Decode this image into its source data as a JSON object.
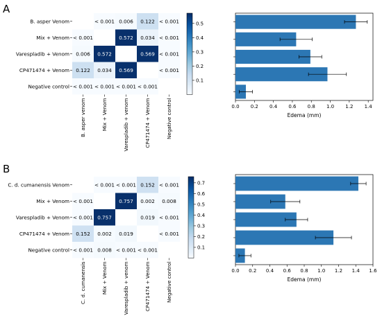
{
  "colors": {
    "bar": "#2c77b4",
    "heat_low": "#f7fbff",
    "heat_high": "#08306b"
  },
  "chart_data": [
    {
      "type": "heatmap",
      "panel": "A",
      "rows": [
        "B. asper Venom",
        "Mix + Venom",
        "Varespladib + Venom",
        "CP471474 + Venom",
        "Negative control"
      ],
      "cols": [
        "B. asper venom",
        "Mix + Venom",
        "Varespladib + venom",
        "CP471474 + Venom",
        "Negative control"
      ],
      "cells": [
        [
          "",
          "< 0.001",
          "0.006",
          "0.122",
          "< 0.001"
        ],
        [
          "< 0.001",
          "",
          "0.572",
          "0.034",
          "< 0.001"
        ],
        [
          "0.006",
          "0.572",
          "",
          "0.569",
          "< 0.001"
        ],
        [
          "0.122",
          "0.034",
          "0.569",
          "",
          "< 0.001"
        ],
        [
          "< 0.001",
          "< 0.001",
          "< 0.001",
          "< 0.001",
          ""
        ]
      ],
      "values": [
        [
          null,
          0.001,
          0.006,
          0.122,
          0.001
        ],
        [
          0.001,
          null,
          0.572,
          0.034,
          0.001
        ],
        [
          0.006,
          0.572,
          null,
          0.569,
          0.001
        ],
        [
          0.122,
          0.034,
          0.569,
          null,
          0.001
        ],
        [
          0.001,
          0.001,
          0.001,
          0.001,
          null
        ]
      ],
      "vmax": 0.572,
      "colorbar_ticks": [
        "0.1",
        "0.2",
        "0.3",
        "0.4",
        "0.5"
      ]
    },
    {
      "type": "bar",
      "orientation": "horizontal",
      "panel": "A",
      "values": [
        1.27,
        0.64,
        0.79,
        0.97,
        0.11
      ],
      "errors": [
        0.12,
        0.17,
        0.12,
        0.2,
        0.07
      ],
      "xlabel": "Edema (mm)",
      "xlim": [
        0,
        1.45
      ],
      "xticks": [
        "0.0",
        "0.2",
        "0.4",
        "0.6",
        "0.8",
        "1.0",
        "1.2",
        "1.4"
      ]
    },
    {
      "type": "heatmap",
      "panel": "B",
      "rows": [
        "C. d. cumanensis Venom",
        "Mix + Venom",
        "Varespladib + Venom",
        "CP471474 + Venom",
        "Negative control"
      ],
      "cols": [
        "C. d. cumanensis",
        "Mix + Venom",
        "Varespladib + venom",
        "CP471474 + Venom",
        "Negative control"
      ],
      "cells": [
        [
          "",
          "< 0.001",
          "< 0.001",
          "0.152",
          "< 0.001"
        ],
        [
          "< 0.001",
          "",
          "0.757",
          "0.002",
          "0.008"
        ],
        [
          "< 0.001",
          "0.757",
          "",
          "0.019",
          "< 0.001"
        ],
        [
          "0.152",
          "0.002",
          "0.019",
          "",
          "< 0.001"
        ],
        [
          "< 0.001",
          "0.008",
          "< 0.001",
          "< 0.001",
          ""
        ]
      ],
      "values": [
        [
          null,
          0.001,
          0.001,
          0.152,
          0.001
        ],
        [
          0.001,
          null,
          0.757,
          0.002,
          0.008
        ],
        [
          0.001,
          0.757,
          null,
          0.019,
          0.001
        ],
        [
          0.152,
          0.002,
          0.019,
          null,
          0.001
        ],
        [
          0.001,
          0.008,
          0.001,
          0.001,
          null
        ]
      ],
      "vmax": 0.757,
      "colorbar_ticks": [
        "0.1",
        "0.2",
        "0.3",
        "0.4",
        "0.5",
        "0.6",
        "0.7"
      ]
    },
    {
      "type": "bar",
      "orientation": "horizontal",
      "panel": "B",
      "values": [
        1.43,
        0.58,
        0.71,
        1.14,
        0.11
      ],
      "errors": [
        0.09,
        0.17,
        0.13,
        0.21,
        0.07
      ],
      "xlabel": "Edema (mm)",
      "xlim": [
        0,
        1.6
      ],
      "xticks": [
        "0.0",
        "0.2",
        "0.4",
        "0.6",
        "0.8",
        "1.0",
        "1.2",
        "1.4",
        "1.6"
      ]
    }
  ]
}
